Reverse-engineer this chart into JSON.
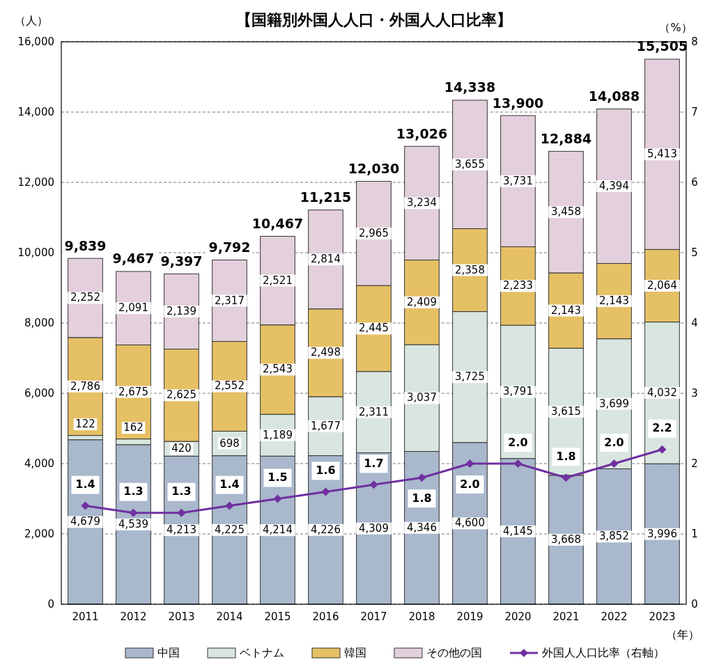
{
  "chart_data": {
    "type": "bar",
    "title": "【国籍別外国人人口・外国人人口比率】",
    "xlabel": "（年）",
    "ylabel": "（人）",
    "y2label": "（%）",
    "categories": [
      "2011",
      "2012",
      "2013",
      "2014",
      "2015",
      "2016",
      "2017",
      "2018",
      "2019",
      "2020",
      "2021",
      "2022",
      "2023"
    ],
    "stacked": true,
    "grid": "y",
    "legend": "bottom",
    "marker": "diamond",
    "ylim": [
      0,
      16000
    ],
    "yticks": [
      0,
      {
        "value": 2000,
        "label": "2,000"
      },
      {
        "value": 4000,
        "label": "4,000"
      },
      {
        "value": 6000,
        "label": "6,000"
      },
      {
        "value": 8000,
        "label": "8,000"
      },
      {
        "value": 10000,
        "label": "10,000"
      },
      {
        "value": 12000,
        "label": "12,000"
      },
      {
        "value": 14000,
        "label": "14,000"
      },
      {
        "value": 16000,
        "label": "16,000"
      }
    ],
    "y2lim": [
      0,
      8
    ],
    "y2ticks": [
      0,
      1,
      2,
      3,
      4,
      5,
      6,
      7,
      8
    ],
    "series": [
      {
        "name": "中国",
        "color": "#a9b8cc",
        "values": [
          4679,
          4539,
          4213,
          4225,
          4214,
          4226,
          4309,
          4346,
          4600,
          4145,
          3668,
          3852,
          3996
        ],
        "value_labels": [
          "4,679",
          "4,539",
          "4,213",
          "4,225",
          "4,214",
          "4,226",
          "4,309",
          "4,346",
          "4,600",
          "4,145",
          "3,668",
          "3,852",
          "3,996"
        ]
      },
      {
        "name": "ベトナム",
        "color": "#d9e6df",
        "values": [
          122,
          162,
          420,
          698,
          1189,
          1677,
          2311,
          3037,
          3725,
          3791,
          3615,
          3699,
          4032
        ],
        "value_labels": [
          "122",
          "162",
          "420",
          "698",
          "1,189",
          "1,677",
          "2,311",
          "3,037",
          "3,725",
          "3,791",
          "3,615",
          "3,699",
          "4,032"
        ]
      },
      {
        "name": "韓国",
        "color": "#e6c065",
        "values": [
          2786,
          2675,
          2625,
          2552,
          2543,
          2498,
          2445,
          2409,
          2358,
          2233,
          2143,
          2143,
          2064
        ],
        "value_labels": [
          "2,786",
          "2,675",
          "2,625",
          "2,552",
          "2,543",
          "2,498",
          "2,445",
          "2,409",
          "2,358",
          "2,233",
          "2,143",
          "2,143",
          "2,064"
        ]
      },
      {
        "name": "その他の国",
        "color": "#e3d0dc",
        "values": [
          2252,
          2091,
          2139,
          2317,
          2521,
          2814,
          2965,
          3234,
          3655,
          3731,
          3458,
          4394,
          5413
        ],
        "value_labels": [
          "2,252",
          "2,091",
          "2,139",
          "2,317",
          "2,521",
          "2,814",
          "2,965",
          "3,234",
          "3,655",
          "3,731",
          "3,458",
          "4,394",
          "5,413"
        ]
      },
      {
        "name": "外国人人口比率（右軸）",
        "type": "line",
        "axis": "y2",
        "color": "#7030a0",
        "values": [
          1.4,
          1.3,
          1.3,
          1.4,
          1.5,
          1.6,
          1.7,
          1.8,
          2.0,
          2.0,
          1.8,
          2.0,
          2.2
        ],
        "value_labels": [
          "1.4",
          "1.3",
          "1.3",
          "1.4",
          "1.5",
          "1.6",
          "1.7",
          "1.8",
          "2.0",
          "2.0",
          "1.8",
          "2.0",
          "2.2"
        ]
      }
    ],
    "totals": [
      "9,839",
      "9,467",
      "9,397",
      "9,792",
      "10,467",
      "11,215",
      "12,030",
      "13,026",
      "14,338",
      "13,900",
      "12,884",
      "14,088",
      "15,505"
    ]
  }
}
